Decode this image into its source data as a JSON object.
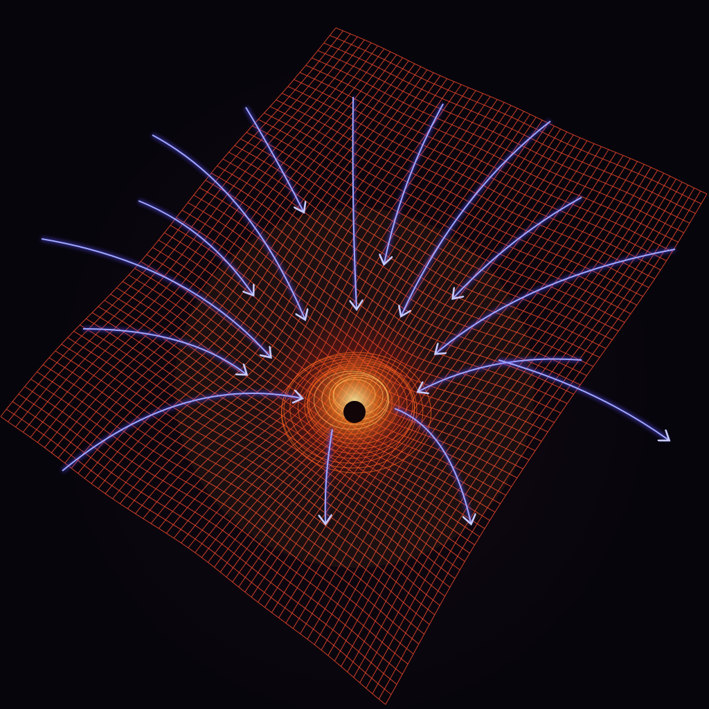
{
  "scene": {
    "subject": "warped-grid-gravity-well",
    "colors": {
      "background": "#07050c",
      "grid_outer": "#e0442a",
      "grid_inner": "#ffa43a",
      "well_glow": "#ff5a1e",
      "arrow": "#9fa8ff",
      "arrow_glow": "#5a4dff"
    }
  }
}
